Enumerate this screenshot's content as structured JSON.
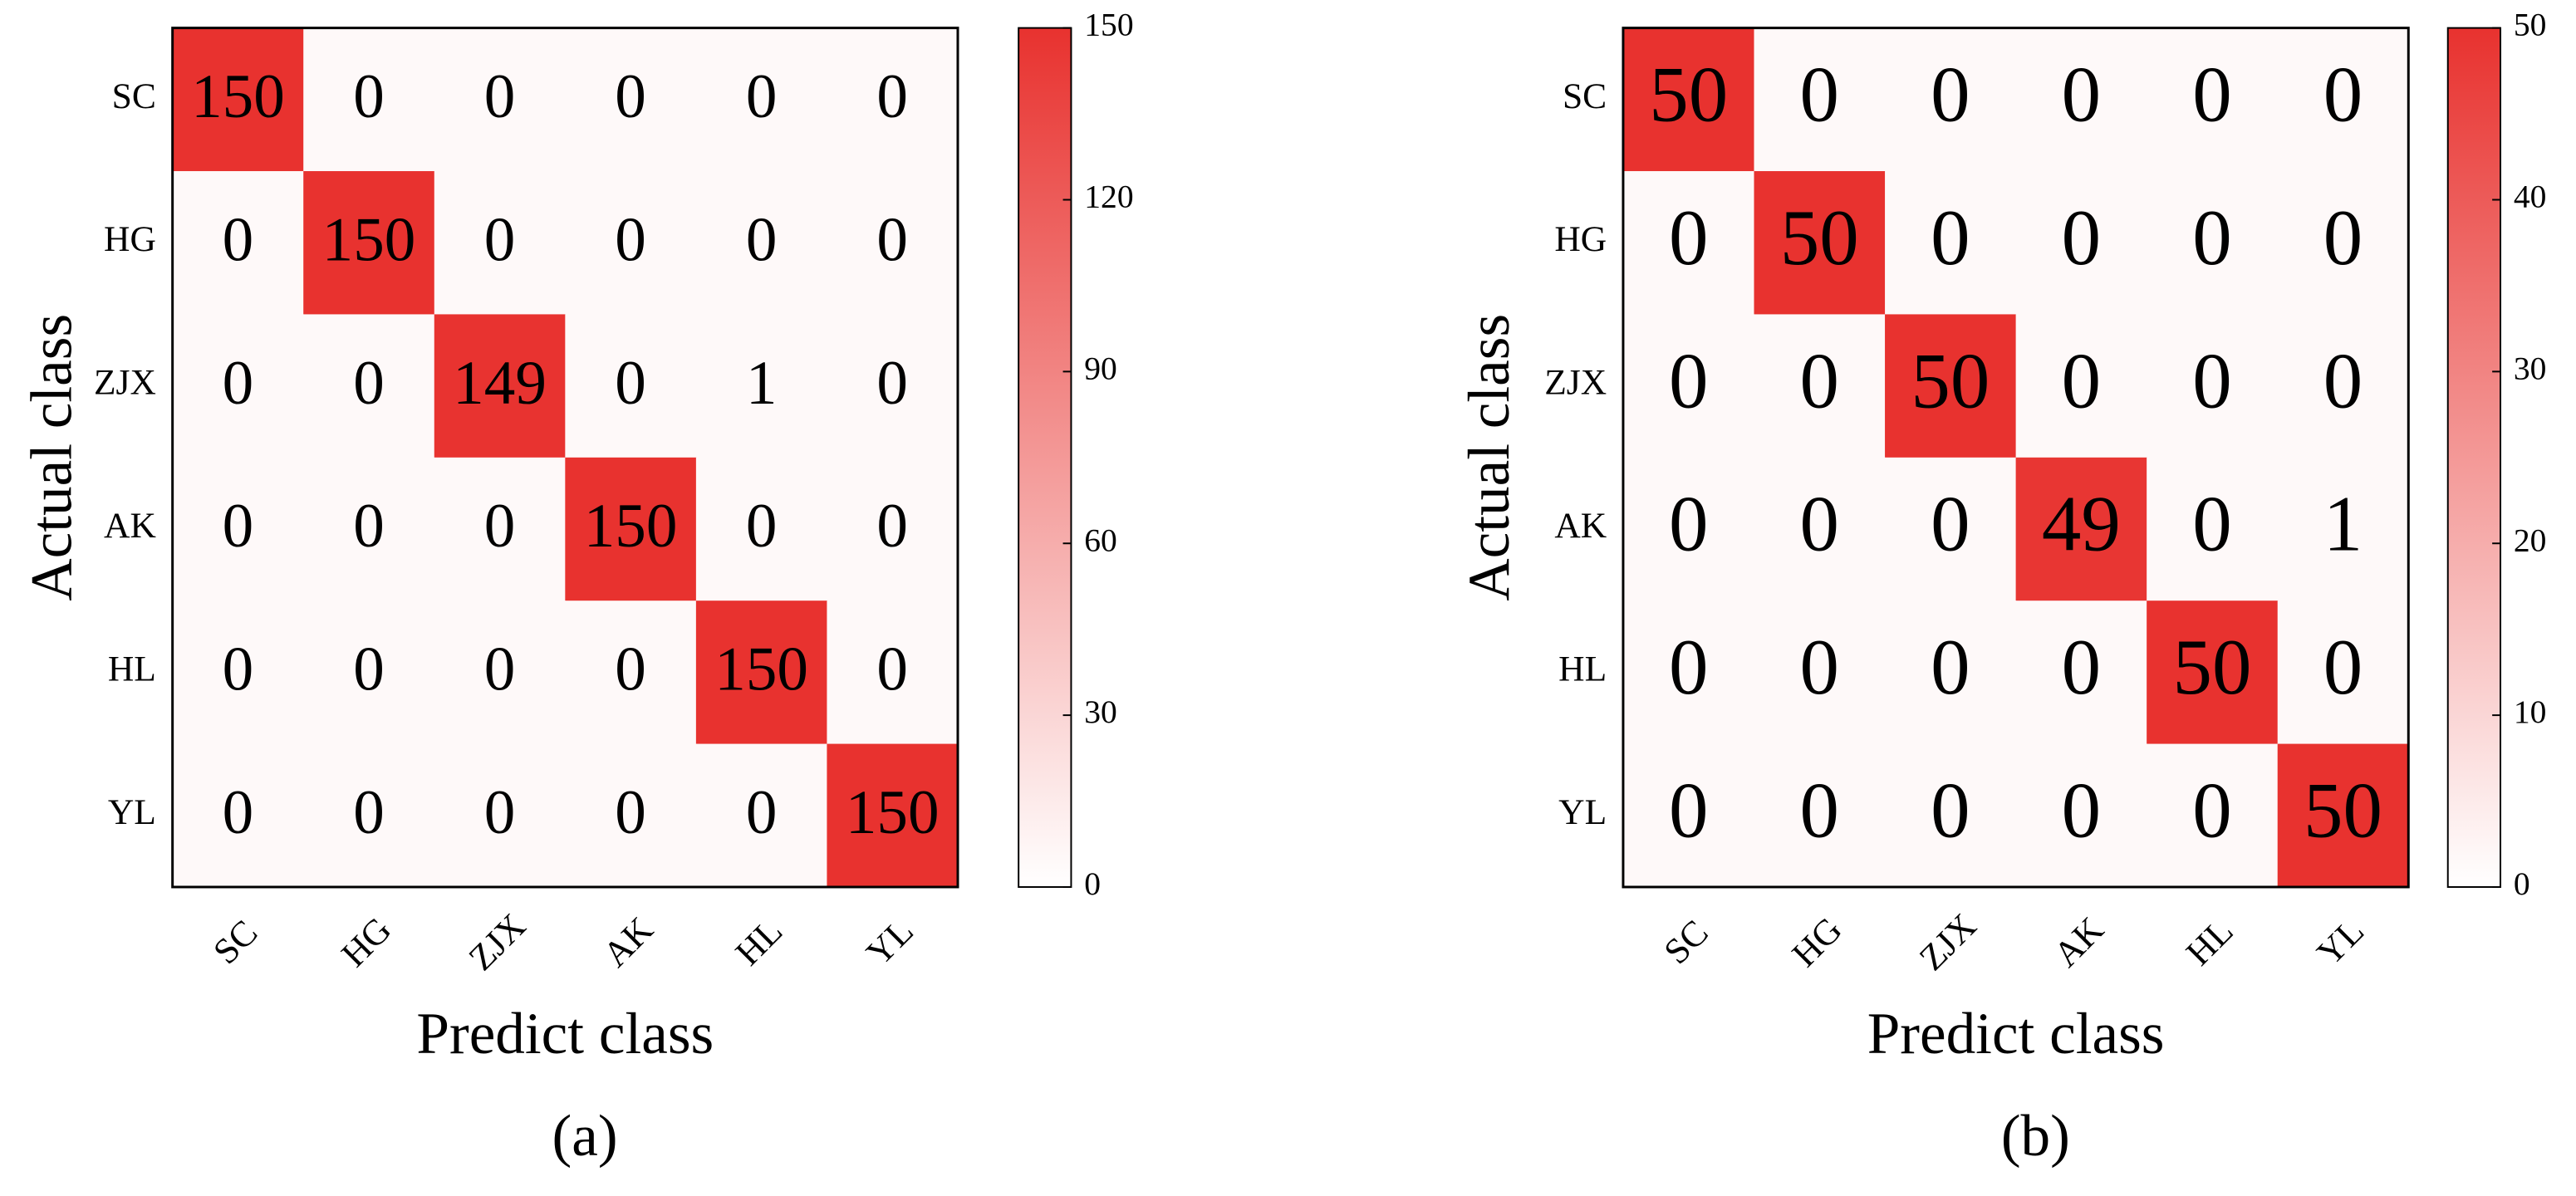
{
  "chart_data": [
    {
      "type": "heatmap",
      "x_categories": [
        "SC",
        "HG",
        "ZJX",
        "AK",
        "HL",
        "YL"
      ],
      "y_categories": [
        "SC",
        "HG",
        "ZJX",
        "AK",
        "HL",
        "YL"
      ],
      "values": [
        [
          150,
          0,
          0,
          0,
          0,
          0
        ],
        [
          0,
          150,
          0,
          0,
          0,
          0
        ],
        [
          0,
          0,
          149,
          0,
          1,
          0
        ],
        [
          0,
          0,
          0,
          150,
          0,
          0
        ],
        [
          0,
          0,
          0,
          0,
          150,
          0
        ],
        [
          0,
          0,
          0,
          0,
          0,
          150
        ]
      ],
      "xlabel": "Predict class",
      "ylabel": "Actual class",
      "caption": "(a)",
      "colors": [
        "#ffffff",
        "#e8322f"
      ],
      "clim": [
        0,
        150
      ],
      "cticks": [
        0,
        30,
        60,
        90,
        120,
        150
      ]
    },
    {
      "type": "heatmap",
      "x_categories": [
        "SC",
        "HG",
        "ZJX",
        "AK",
        "HL",
        "YL"
      ],
      "y_categories": [
        "SC",
        "HG",
        "ZJX",
        "AK",
        "HL",
        "YL"
      ],
      "values": [
        [
          50,
          0,
          0,
          0,
          0,
          0
        ],
        [
          0,
          50,
          0,
          0,
          0,
          0
        ],
        [
          0,
          0,
          50,
          0,
          0,
          0
        ],
        [
          0,
          0,
          0,
          49,
          0,
          1
        ],
        [
          0,
          0,
          0,
          0,
          50,
          0
        ],
        [
          0,
          0,
          0,
          0,
          0,
          50
        ]
      ],
      "xlabel": "Predict class",
      "ylabel": "Actual class",
      "caption": "(b)",
      "colors": [
        "#ffffff",
        "#e8322f"
      ],
      "clim": [
        0,
        50
      ],
      "cticks": [
        0,
        10,
        20,
        30,
        40,
        50
      ]
    }
  ]
}
